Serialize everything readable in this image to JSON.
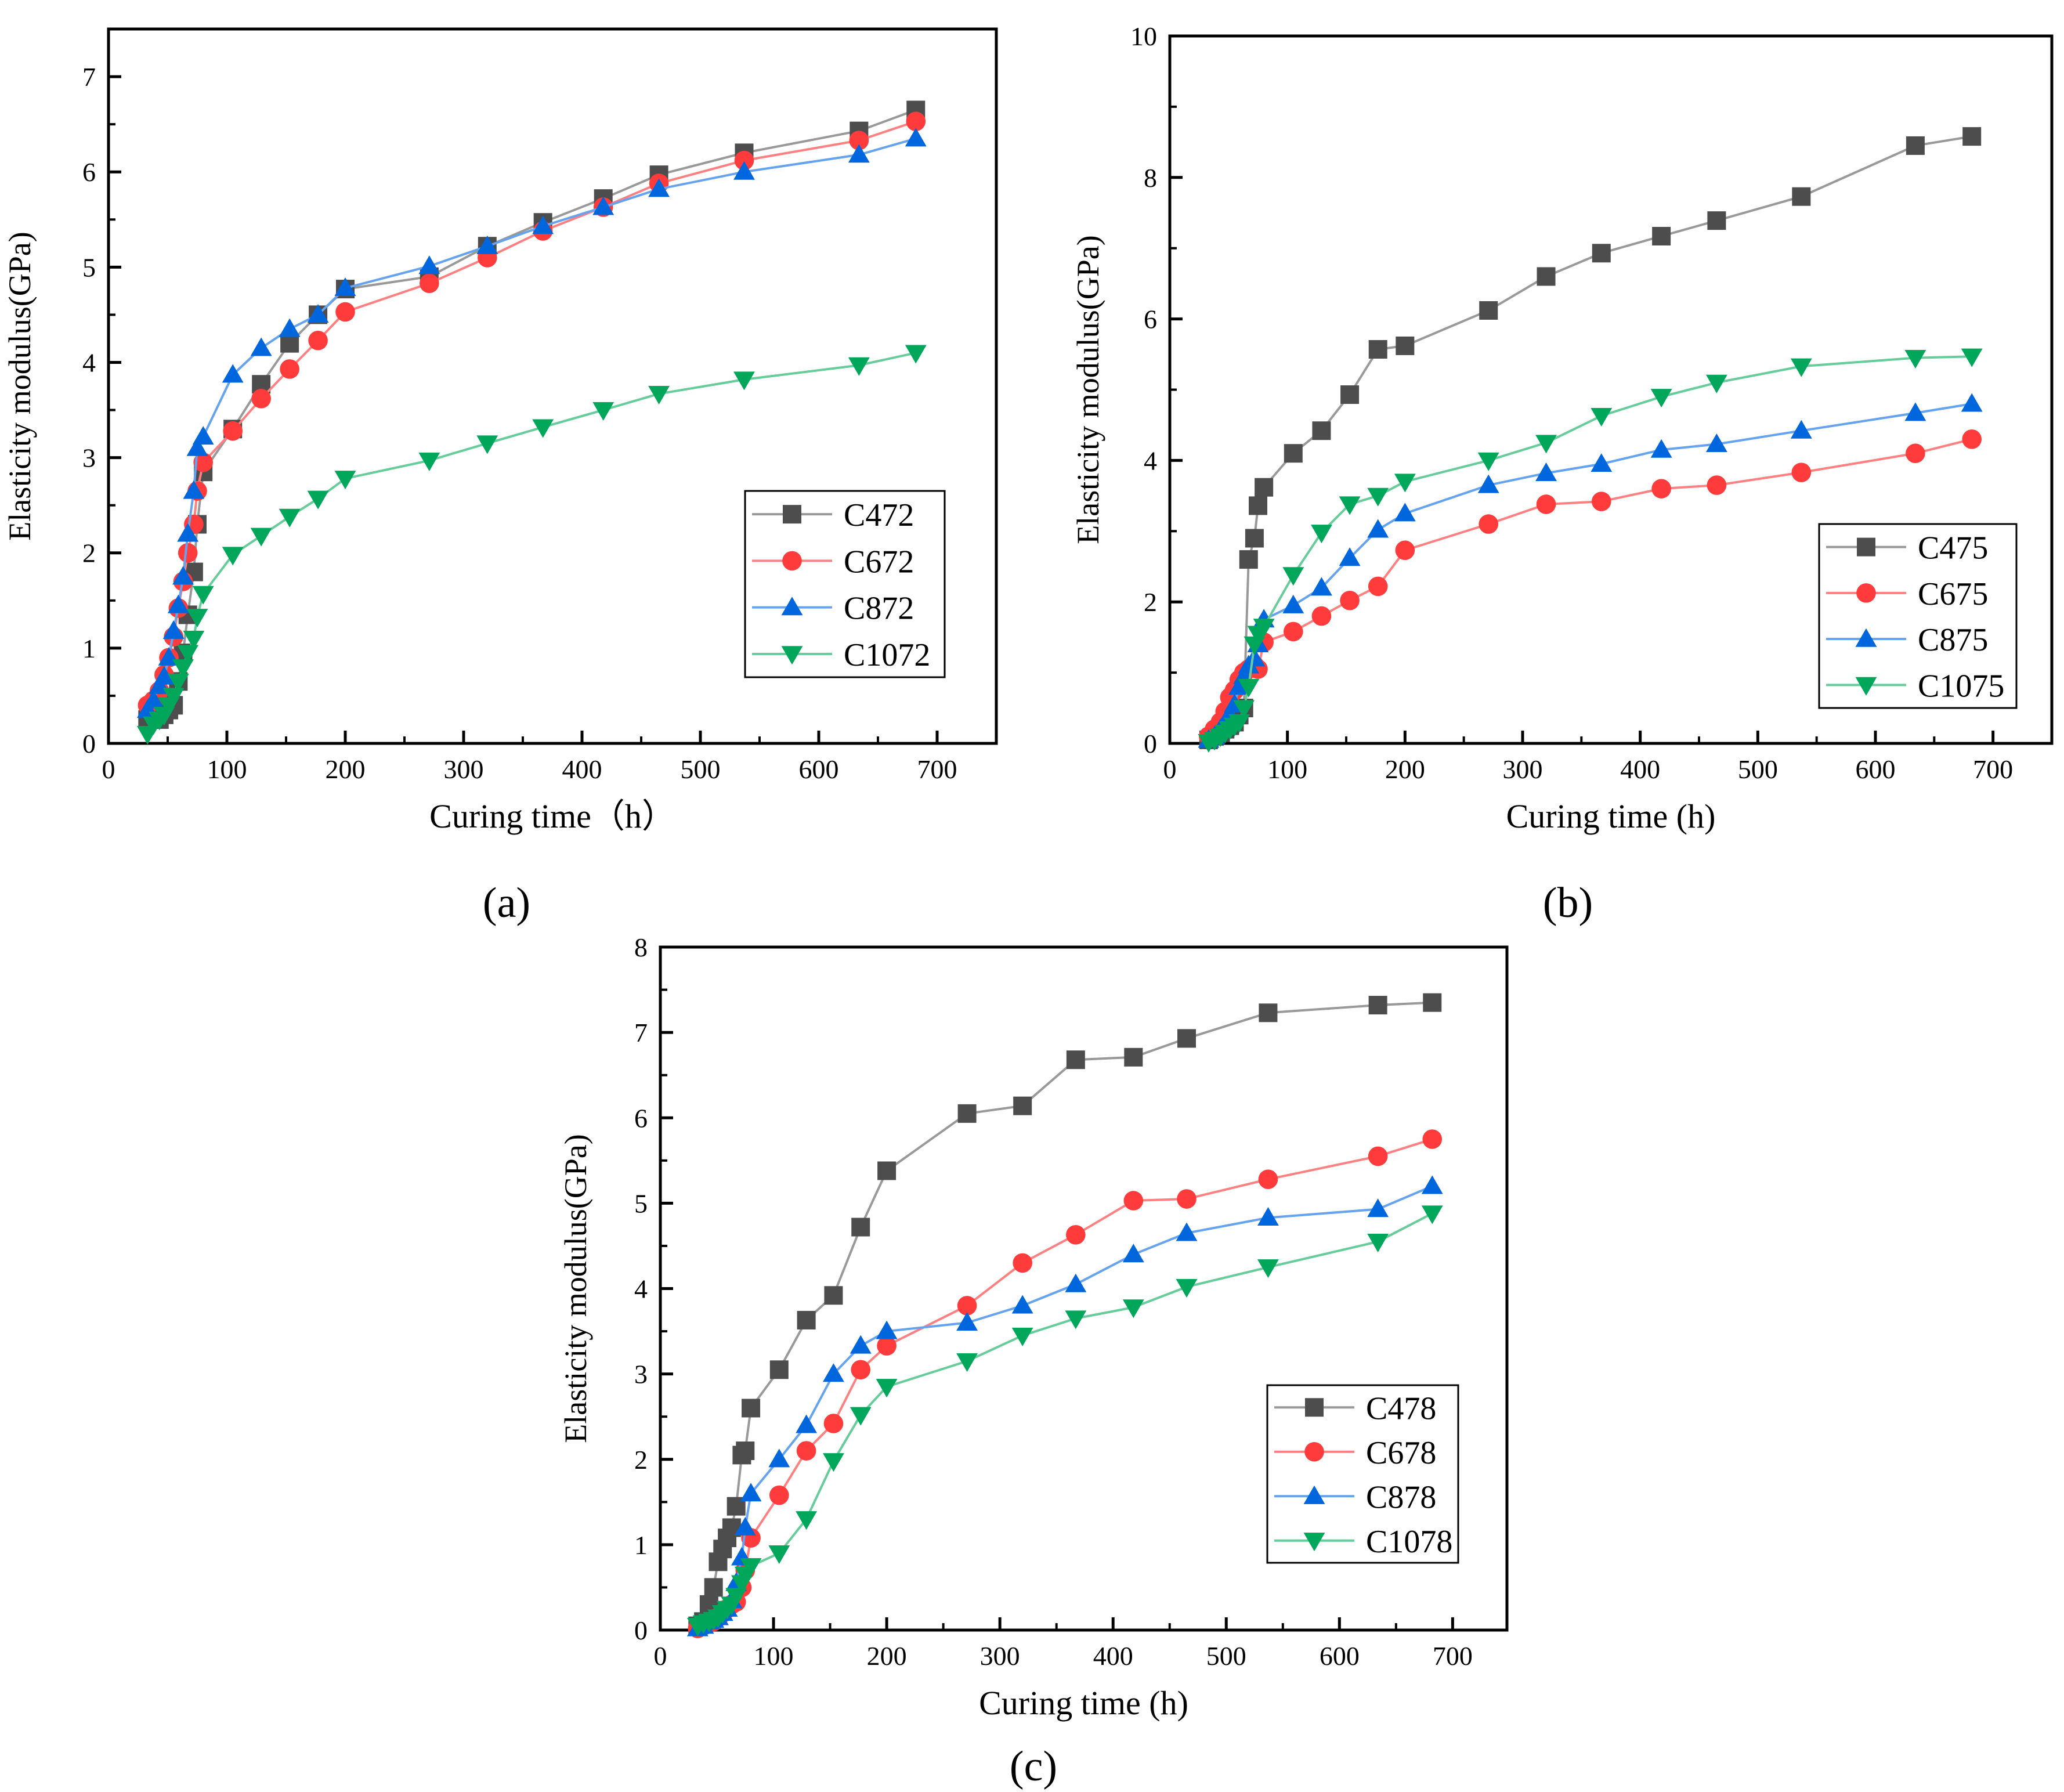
{
  "chart_data": [
    {
      "panel": "(a)",
      "type": "line",
      "xlabel": "Curing time（h）",
      "ylabel": "Elasticity modulus(GPa)",
      "xlim": [
        0,
        750
      ],
      "ylim": [
        0,
        7.5
      ],
      "xticks": [
        0,
        100,
        200,
        300,
        400,
        500,
        600,
        700
      ],
      "yticks": [
        0,
        1,
        2,
        3,
        4,
        5,
        6,
        7
      ],
      "legend": "bottom-right",
      "x": [
        33,
        38,
        43,
        47,
        51,
        55,
        59,
        63,
        67,
        72,
        75,
        80,
        105,
        129,
        153,
        177,
        200,
        271,
        320,
        367,
        418,
        465,
        537,
        634,
        682
      ],
      "series": [
        {
          "name": "C472",
          "marker": "square",
          "color": "#4d4d4d",
          "line": "#999999",
          "values": [
            0.25,
            0.3,
            0.25,
            0.3,
            0.35,
            0.4,
            0.65,
            0.95,
            1.35,
            1.8,
            2.3,
            2.85,
            3.3,
            3.77,
            4.2,
            4.5,
            4.77,
            4.9,
            5.22,
            5.47,
            5.72,
            5.97,
            6.2,
            6.43,
            6.65
          ]
        },
        {
          "name": "C672",
          "marker": "circle",
          "color": "#ff3b3b",
          "line": "#ff8080",
          "values": [
            0.4,
            0.45,
            0.55,
            0.72,
            0.9,
            1.12,
            1.42,
            1.7,
            2.0,
            2.3,
            2.65,
            2.95,
            3.28,
            3.62,
            3.93,
            4.23,
            4.53,
            4.83,
            5.1,
            5.38,
            5.63,
            5.88,
            6.12,
            6.33,
            6.53
          ]
        },
        {
          "name": "C872",
          "marker": "triangle-up",
          "color": "#0066dd",
          "line": "#66a3ee",
          "values": [
            0.35,
            0.45,
            0.6,
            0.7,
            0.9,
            1.18,
            1.45,
            1.75,
            2.2,
            2.65,
            3.1,
            3.22,
            3.87,
            4.15,
            4.35,
            4.5,
            4.78,
            5.01,
            5.22,
            5.43,
            5.63,
            5.82,
            6.0,
            6.18,
            6.35
          ]
        },
        {
          "name": "C1072",
          "marker": "triangle-down",
          "color": "#00a65a",
          "line": "#66cc99",
          "values": [
            0.1,
            0.2,
            0.25,
            0.3,
            0.4,
            0.5,
            0.65,
            0.8,
            0.95,
            1.1,
            1.33,
            1.57,
            1.98,
            2.18,
            2.38,
            2.57,
            2.78,
            2.97,
            3.15,
            3.32,
            3.5,
            3.67,
            3.82,
            3.97,
            4.1
          ]
        }
      ]
    },
    {
      "panel": "(b)",
      "type": "line",
      "xlabel": "Curing time (h)",
      "ylabel": "Elasticity modulus(GPa)",
      "xlim": [
        0,
        750
      ],
      "ylim": [
        0,
        10
      ],
      "xticks": [
        0,
        100,
        200,
        300,
        400,
        500,
        600,
        700
      ],
      "yticks": [
        0,
        2,
        4,
        6,
        8,
        10
      ],
      "legend": "right",
      "x": [
        33,
        38,
        43,
        47,
        51,
        55,
        59,
        63,
        67,
        72,
        75,
        80,
        105,
        129,
        153,
        177,
        200,
        271,
        320,
        367,
        418,
        465,
        537,
        634,
        682
      ],
      "series": [
        {
          "name": "C475",
          "marker": "square",
          "color": "#4d4d4d",
          "line": "#999999",
          "values": [
            0.05,
            0.1,
            0.15,
            0.2,
            0.25,
            0.3,
            0.4,
            0.5,
            2.6,
            2.9,
            3.36,
            3.62,
            4.1,
            4.42,
            4.93,
            5.57,
            5.62,
            6.12,
            6.6,
            6.93,
            7.17,
            7.39,
            7.73,
            8.45,
            8.58
          ]
        },
        {
          "name": "C675",
          "marker": "circle",
          "color": "#ff3b3b",
          "line": "#ff8080",
          "values": [
            0.1,
            0.2,
            0.3,
            0.45,
            0.65,
            0.75,
            0.9,
            1.0,
            1.05,
            1.1,
            1.05,
            1.43,
            1.58,
            1.8,
            2.02,
            2.22,
            2.73,
            3.1,
            3.38,
            3.42,
            3.6,
            3.65,
            3.83,
            4.1,
            4.3
          ]
        },
        {
          "name": "C875",
          "marker": "triangle-up",
          "color": "#0066dd",
          "line": "#66a3ee",
          "values": [
            0.05,
            0.1,
            0.2,
            0.3,
            0.4,
            0.55,
            0.8,
            0.95,
            1.1,
            1.2,
            1.4,
            1.75,
            1.95,
            2.2,
            2.62,
            3.02,
            3.25,
            3.65,
            3.82,
            3.95,
            4.15,
            4.23,
            4.42,
            4.67,
            4.8
          ]
        },
        {
          "name": "C1075",
          "marker": "triangle-down",
          "color": "#00a65a",
          "line": "#66cc99",
          "values": [
            0.02,
            0.05,
            0.1,
            0.15,
            0.2,
            0.25,
            0.3,
            0.5,
            0.8,
            1.4,
            1.55,
            1.65,
            2.38,
            2.98,
            3.38,
            3.5,
            3.7,
            4.0,
            4.25,
            4.63,
            4.9,
            5.1,
            5.33,
            5.45,
            5.47
          ]
        }
      ]
    },
    {
      "panel": "(c)",
      "type": "line",
      "xlabel": "Curing time (h)",
      "ylabel": "Elasticity modulus(GPa)",
      "xlim": [
        0,
        748
      ],
      "ylim": [
        0,
        8
      ],
      "xticks": [
        0,
        100,
        200,
        300,
        400,
        500,
        600,
        700
      ],
      "yticks": [
        0,
        1,
        2,
        3,
        4,
        5,
        6,
        7,
        8
      ],
      "legend": "bottom-right",
      "x": [
        33,
        38,
        43,
        47,
        51,
        55,
        59,
        63,
        67,
        72,
        75,
        80,
        105,
        129,
        153,
        177,
        200,
        271,
        320,
        367,
        418,
        465,
        537,
        634,
        682
      ],
      "series": [
        {
          "name": "C478",
          "marker": "square",
          "color": "#4d4d4d",
          "line": "#999999",
          "values": [
            0.05,
            0.1,
            0.3,
            0.5,
            0.8,
            0.95,
            1.08,
            1.2,
            1.45,
            2.05,
            2.1,
            2.6,
            3.05,
            3.63,
            3.92,
            4.72,
            5.38,
            6.05,
            6.14,
            6.68,
            6.71,
            6.93,
            7.23,
            7.32,
            7.35
          ]
        },
        {
          "name": "C678",
          "marker": "circle",
          "color": "#ff3b3b",
          "line": "#ff8080",
          "values": [
            0.02,
            0.05,
            0.08,
            0.1,
            0.15,
            0.2,
            0.25,
            0.3,
            0.33,
            0.5,
            0.7,
            1.08,
            1.58,
            2.1,
            2.42,
            3.05,
            3.33,
            3.8,
            4.3,
            4.63,
            5.03,
            5.05,
            5.28,
            5.55,
            5.75
          ]
        },
        {
          "name": "C878",
          "marker": "triangle-up",
          "color": "#0066dd",
          "line": "#66a3ee",
          "values": [
            0.02,
            0.05,
            0.1,
            0.12,
            0.15,
            0.2,
            0.25,
            0.35,
            0.55,
            0.85,
            1.2,
            1.6,
            2.0,
            2.4,
            3.0,
            3.33,
            3.5,
            3.6,
            3.8,
            4.05,
            4.4,
            4.65,
            4.83,
            4.93,
            5.2
          ]
        },
        {
          "name": "C1078",
          "marker": "triangle-down",
          "color": "#00a65a",
          "line": "#66cc99",
          "values": [
            0.05,
            0.08,
            0.1,
            0.12,
            0.15,
            0.2,
            0.25,
            0.3,
            0.4,
            0.55,
            0.65,
            0.75,
            0.9,
            1.3,
            1.98,
            2.52,
            2.85,
            3.15,
            3.45,
            3.65,
            3.78,
            4.02,
            4.25,
            4.55,
            4.88
          ]
        }
      ]
    }
  ]
}
